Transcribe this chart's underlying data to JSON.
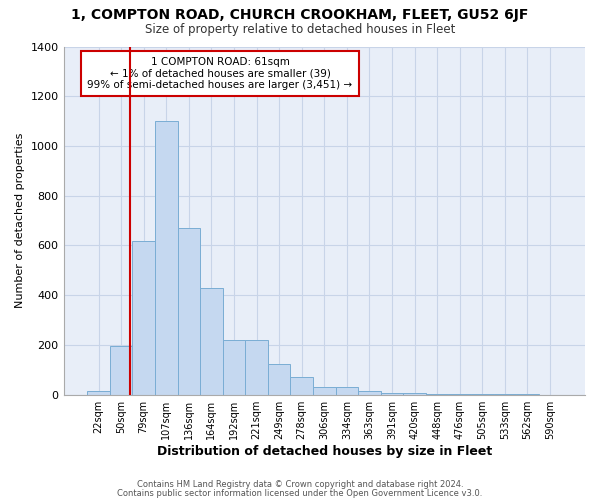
{
  "title1": "1, COMPTON ROAD, CHURCH CROOKHAM, FLEET, GU52 6JF",
  "title2": "Size of property relative to detached houses in Fleet",
  "xlabel": "Distribution of detached houses by size in Fleet",
  "ylabel": "Number of detached properties",
  "categories": [
    "22sqm",
    "50sqm",
    "79sqm",
    "107sqm",
    "136sqm",
    "164sqm",
    "192sqm",
    "221sqm",
    "249sqm",
    "278sqm",
    "306sqm",
    "334sqm",
    "363sqm",
    "391sqm",
    "420sqm",
    "448sqm",
    "476sqm",
    "505sqm",
    "533sqm",
    "562sqm",
    "590sqm"
  ],
  "values": [
    15,
    195,
    620,
    1100,
    670,
    430,
    220,
    220,
    125,
    70,
    30,
    30,
    15,
    5,
    5,
    2,
    1,
    1,
    1,
    1,
    0
  ],
  "bar_color": "#c5d8f0",
  "bar_edge_color": "#7aadd4",
  "vline_color": "#cc0000",
  "annotation_text": "1 COMPTON ROAD: 61sqm\n← 1% of detached houses are smaller (39)\n99% of semi-detached houses are larger (3,451) →",
  "annotation_box_color": "#ffffff",
  "annotation_edge_color": "#cc0000",
  "ylim": [
    0,
    1400
  ],
  "yticks": [
    0,
    200,
    400,
    600,
    800,
    1000,
    1200,
    1400
  ],
  "grid_color": "#c8d4e8",
  "plot_bg_color": "#e8eef8",
  "fig_bg_color": "#ffffff",
  "footer1": "Contains HM Land Registry data © Crown copyright and database right 2024.",
  "footer2": "Contains public sector information licensed under the Open Government Licence v3.0."
}
